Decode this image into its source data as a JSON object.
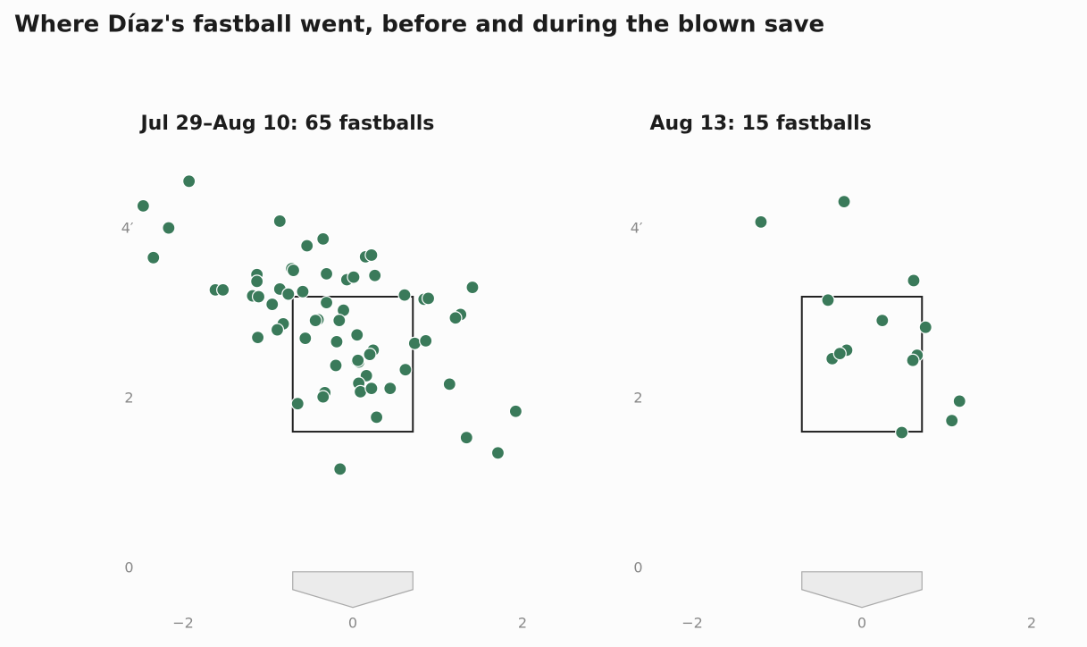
{
  "title": "Where Díaz's fastball went, before and during the blown save",
  "chart_data": [
    {
      "type": "scatter",
      "title": "Jul 29–Aug 10: 65 fastballs",
      "color": "#3a7a5a",
      "xlim": [
        -2.5,
        2.5
      ],
      "ylim": [
        -0.5,
        4.8
      ],
      "xticks": [
        {
          "value": -2,
          "label": "−2"
        },
        0,
        2
      ],
      "yticks": [
        0,
        2,
        {
          "value": 4,
          "label": "4′"
        }
      ],
      "x": [
        -2.47,
        -1.93,
        -2.17,
        -2.35,
        -0.86,
        -0.54,
        -0.35,
        0.15,
        0.22,
        -0.72,
        -1.13,
        -1.13,
        -1.62,
        -1.53,
        -1.18,
        -1.11,
        -0.86,
        -0.76,
        -0.59,
        -0.31,
        -0.07,
        0.01,
        0.26,
        -0.95,
        -0.31,
        0.61,
        0.84,
        0.89,
        1.41,
        1.27,
        1.21,
        -0.11,
        -0.82,
        -0.41,
        -0.44,
        -0.16,
        -1.12,
        -0.89,
        -0.56,
        -0.19,
        0.05,
        0.73,
        0.86,
        0.24,
        0.2,
        0.05,
        0.07,
        -0.2,
        0.16,
        0.62,
        0.07,
        0.09,
        0.22,
        0.44,
        -0.33,
        -0.35,
        -0.65,
        1.14,
        0.28,
        1.92,
        1.34,
        1.71,
        -0.15,
        -0.7,
        0.06
      ],
      "values": [
        4.27,
        4.56,
        4.01,
        3.66,
        4.09,
        3.8,
        3.88,
        3.67,
        3.69,
        3.53,
        3.46,
        3.38,
        3.28,
        3.28,
        3.21,
        3.2,
        3.29,
        3.23,
        3.26,
        3.47,
        3.4,
        3.43,
        3.45,
        3.11,
        3.13,
        3.22,
        3.17,
        3.18,
        3.31,
        2.99,
        2.95,
        3.04,
        2.88,
        2.93,
        2.92,
        2.92,
        2.72,
        2.81,
        2.71,
        2.67,
        2.75,
        2.65,
        2.68,
        2.57,
        2.52,
        2.44,
        2.43,
        2.39,
        2.27,
        2.34,
        2.18,
        2.08,
        2.12,
        2.12,
        2.07,
        2.02,
        1.94,
        2.17,
        1.78,
        1.85,
        1.54,
        1.36,
        1.17,
        3.51,
        2.45
      ]
    },
    {
      "type": "scatter",
      "title": "Aug 13: 15 fastballs",
      "color": "#3a7a5a",
      "xlim": [
        -2.5,
        2.5
      ],
      "ylim": [
        -0.5,
        4.8
      ],
      "xticks": [
        {
          "value": -2,
          "label": "−2"
        },
        0,
        2
      ],
      "yticks": [
        0,
        2,
        {
          "value": 4,
          "label": "4′"
        }
      ],
      "x": [
        -1.19,
        -0.21,
        0.61,
        -0.4,
        0.24,
        0.75,
        -0.35,
        -0.25,
        -0.18,
        0.65,
        0.6,
        1.15,
        1.06,
        0.47,
        -0.26
      ],
      "values": [
        4.08,
        4.32,
        3.39,
        3.16,
        2.92,
        2.84,
        2.47,
        2.54,
        2.57,
        2.51,
        2.45,
        1.97,
        1.74,
        1.6,
        2.53
      ]
    }
  ]
}
